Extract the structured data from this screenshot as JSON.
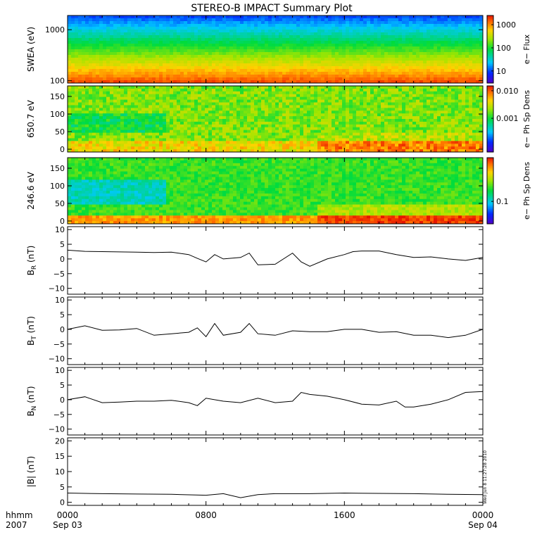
{
  "chart_data": {
    "type": "multi-panel",
    "title": "STEREO-B IMPACT Summary Plot",
    "x": {
      "label_lines": [
        "hhmm",
        "2007"
      ],
      "ticks": [
        {
          "label": "0000",
          "date": "Sep 03",
          "hours": 0
        },
        {
          "label": "0800",
          "date": "",
          "hours": 8
        },
        {
          "label": "1600",
          "date": "",
          "hours": 16
        },
        {
          "label": "0000",
          "date": "Sep 04",
          "hours": 24
        }
      ],
      "range_hours": [
        0,
        24
      ]
    },
    "timestamp": "Wed Jun 8 11:27:28 2010",
    "panels": [
      {
        "id": "swea",
        "type": "heatmap",
        "ylabel": "SWEA (eV)",
        "yscale": "log",
        "ylim": [
          90,
          1900
        ],
        "yticks": [
          {
            "v": 1000,
            "label": "1000"
          },
          {
            "v": 100,
            "label": "100"
          }
        ],
        "colorbar": {
          "label": "e− Flux",
          "scale": "log",
          "range": [
            3,
            2500
          ],
          "ticks": [
            {
              "v": 1000,
              "label": "1000"
            },
            {
              "v": 100,
              "label": "100"
            },
            {
              "v": 10,
              "label": "10"
            }
          ]
        }
      },
      {
        "id": "pad650",
        "type": "heatmap",
        "ylabel": "650.7 eV",
        "yscale": "linear",
        "ylim": [
          -8,
          180
        ],
        "yticks": [
          {
            "v": 150,
            "label": "150"
          },
          {
            "v": 100,
            "label": "100"
          },
          {
            "v": 50,
            "label": "50"
          },
          {
            "v": 0,
            "label": "0"
          }
        ],
        "colorbar": {
          "label": "e− Ph Sp Dens",
          "scale": "log",
          "range": [
            6e-05,
            0.015
          ],
          "ticks": [
            {
              "v": 0.01,
              "label": "0.010"
            },
            {
              "v": 0.001,
              "label": "0.001"
            }
          ]
        }
      },
      {
        "id": "pad246",
        "type": "heatmap",
        "ylabel": "246.6 eV",
        "yscale": "linear",
        "ylim": [
          -8,
          180
        ],
        "yticks": [
          {
            "v": 150,
            "label": "150"
          },
          {
            "v": 100,
            "label": "100"
          },
          {
            "v": 50,
            "label": "50"
          },
          {
            "v": 0,
            "label": "0"
          }
        ],
        "colorbar": {
          "label": "e− Ph Sp Dens",
          "scale": "log",
          "range": [
            0.04,
            0.6
          ],
          "ticks": [
            {
              "v": 0.1,
              "label": "0.1"
            }
          ]
        }
      },
      {
        "id": "br",
        "type": "line",
        "ylabel": "B",
        "ylabel_sub": "R",
        "ylabel_unit": " (nT)",
        "ylim": [
          -12,
          11
        ],
        "yticks": [
          {
            "v": 10,
            "label": "10"
          },
          {
            "v": 5,
            "label": "5"
          },
          {
            "v": 0,
            "label": "0"
          },
          {
            "v": -5,
            "label": "−5"
          },
          {
            "v": -10,
            "label": "−10"
          }
        ],
        "points": [
          [
            0,
            3
          ],
          [
            1,
            2.6
          ],
          [
            2,
            2.5
          ],
          [
            3,
            2.4
          ],
          [
            4,
            2.3
          ],
          [
            5,
            2.2
          ],
          [
            6,
            2.3
          ],
          [
            7,
            1.5
          ],
          [
            7.5,
            0.2
          ],
          [
            8,
            -1
          ],
          [
            8.5,
            1.5
          ],
          [
            9,
            0
          ],
          [
            10,
            0.5
          ],
          [
            10.5,
            2
          ],
          [
            11,
            -2
          ],
          [
            12,
            -1.8
          ],
          [
            13,
            2
          ],
          [
            13.5,
            -1
          ],
          [
            14,
            -2.5
          ],
          [
            15,
            0
          ],
          [
            16,
            1.5
          ],
          [
            16.5,
            2.5
          ],
          [
            17,
            2.7
          ],
          [
            18,
            2.7
          ],
          [
            19,
            1.5
          ],
          [
            20,
            0.5
          ],
          [
            21,
            0.7
          ],
          [
            22,
            0
          ],
          [
            23,
            -0.5
          ],
          [
            24,
            0.5
          ]
        ]
      },
      {
        "id": "bt",
        "type": "line",
        "ylabel": "B",
        "ylabel_sub": "T",
        "ylabel_unit": " (nT)",
        "ylim": [
          -12,
          11
        ],
        "yticks": [
          {
            "v": 10,
            "label": "10"
          },
          {
            "v": 5,
            "label": "5"
          },
          {
            "v": 0,
            "label": "0"
          },
          {
            "v": -5,
            "label": "−5"
          },
          {
            "v": -10,
            "label": "−10"
          }
        ],
        "points": [
          [
            0,
            0
          ],
          [
            1,
            1.2
          ],
          [
            2,
            -0.3
          ],
          [
            3,
            -0.2
          ],
          [
            4,
            0.3
          ],
          [
            5,
            -2
          ],
          [
            6,
            -1.5
          ],
          [
            7,
            -1
          ],
          [
            7.5,
            0.5
          ],
          [
            8,
            -2.5
          ],
          [
            8.5,
            2
          ],
          [
            9,
            -2
          ],
          [
            10,
            -1
          ],
          [
            10.5,
            2
          ],
          [
            11,
            -1.5
          ],
          [
            12,
            -2
          ],
          [
            13,
            -0.5
          ],
          [
            14,
            -0.8
          ],
          [
            15,
            -0.8
          ],
          [
            16,
            0
          ],
          [
            17,
            0
          ],
          [
            18,
            -1
          ],
          [
            19,
            -0.8
          ],
          [
            20,
            -2
          ],
          [
            21,
            -2
          ],
          [
            22,
            -2.8
          ],
          [
            23,
            -2
          ],
          [
            24,
            0
          ]
        ]
      },
      {
        "id": "bn",
        "type": "line",
        "ylabel": "B",
        "ylabel_sub": "N",
        "ylabel_unit": " (nT)",
        "ylim": [
          -12,
          11
        ],
        "yticks": [
          {
            "v": 10,
            "label": "10"
          },
          {
            "v": 5,
            "label": "5"
          },
          {
            "v": 0,
            "label": "0"
          },
          {
            "v": -5,
            "label": "−5"
          },
          {
            "v": -10,
            "label": "−10"
          }
        ],
        "points": [
          [
            0,
            0
          ],
          [
            1,
            1
          ],
          [
            2,
            -1
          ],
          [
            3,
            -0.8
          ],
          [
            4,
            -0.5
          ],
          [
            5,
            -0.5
          ],
          [
            6,
            -0.2
          ],
          [
            7,
            -1
          ],
          [
            7.5,
            -2
          ],
          [
            8,
            0.5
          ],
          [
            9,
            -0.5
          ],
          [
            10,
            -1
          ],
          [
            11,
            0.5
          ],
          [
            12,
            -1
          ],
          [
            13,
            -0.5
          ],
          [
            13.5,
            2.5
          ],
          [
            14,
            1.8
          ],
          [
            15,
            1.2
          ],
          [
            16,
            0
          ],
          [
            17,
            -1.5
          ],
          [
            18,
            -1.8
          ],
          [
            19,
            -0.5
          ],
          [
            19.5,
            -2.5
          ],
          [
            20,
            -2.5
          ],
          [
            21,
            -1.5
          ],
          [
            22,
            0
          ],
          [
            23,
            2.5
          ],
          [
            24,
            2.8
          ]
        ]
      },
      {
        "id": "bmag",
        "type": "line",
        "ylabel": "|B| (nT)",
        "ylim": [
          -1,
          21
        ],
        "yticks": [
          {
            "v": 20,
            "label": "20"
          },
          {
            "v": 15,
            "label": "15"
          },
          {
            "v": 10,
            "label": "10"
          },
          {
            "v": 5,
            "label": "5"
          },
          {
            "v": 0,
            "label": "0"
          }
        ],
        "points": [
          [
            0,
            3
          ],
          [
            2,
            2.8
          ],
          [
            4,
            2.7
          ],
          [
            6,
            2.6
          ],
          [
            8,
            2.3
          ],
          [
            9,
            2.8
          ],
          [
            10,
            1.5
          ],
          [
            11,
            2.5
          ],
          [
            12,
            2.8
          ],
          [
            14,
            2.8
          ],
          [
            16,
            3
          ],
          [
            18,
            2.9
          ],
          [
            20,
            2.8
          ],
          [
            22,
            2.6
          ],
          [
            24,
            2.5
          ]
        ]
      }
    ]
  }
}
